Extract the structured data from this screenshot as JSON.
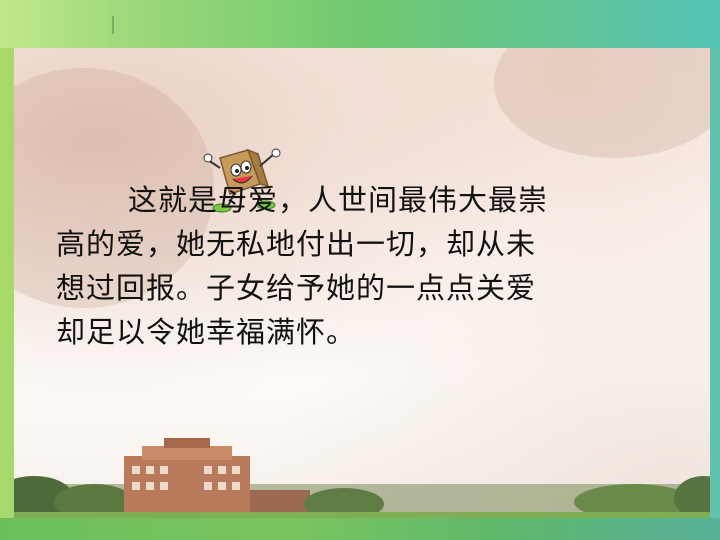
{
  "slide": {
    "paragraph_lines": [
      "这就是母爱，人世间最伟大最崇",
      "高的爱，她无私地付出一切，却从未",
      "想过回报。子女给予她的一点点关爱",
      "却足以令她幸福满怀。"
    ]
  },
  "decor": {
    "mascot_icon": "smiling-paper-bag-mascot-icon",
    "background": "trees-and-campus-building-photo",
    "colors": {
      "frame_green": "#8fd26a",
      "frame_teal": "#54c1b6",
      "text": "#111111"
    }
  }
}
